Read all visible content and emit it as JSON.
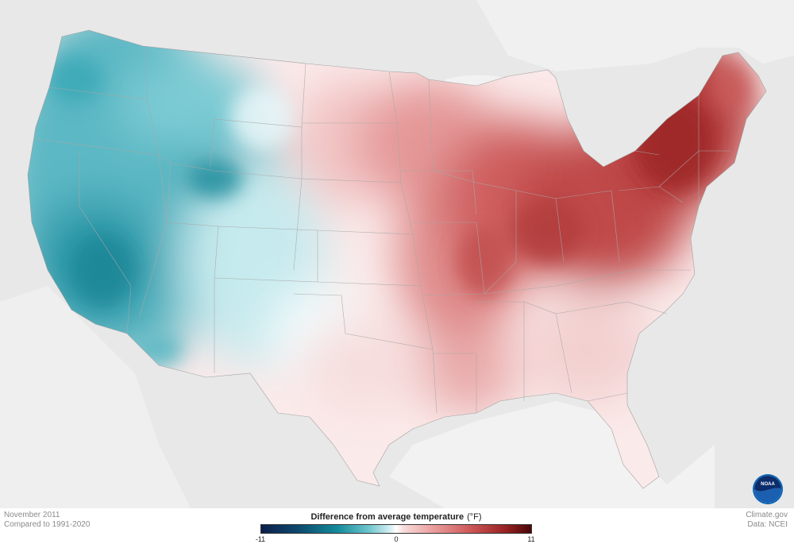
{
  "map": {
    "period": "November 2011",
    "baseline": "Compared to 1991-2020",
    "legend": {
      "title": "Difference from average temperature",
      "unit": "(°F)",
      "ticks": [
        "-11",
        "0",
        "11"
      ],
      "range": [
        -11,
        11
      ]
    },
    "credit": {
      "site": "Climate.gov",
      "data_source": "Data: NCEI"
    },
    "logo_text": "NOAA",
    "colors": {
      "cold_extreme": "#0b1f4a",
      "cold": "#128a99",
      "neutral": "#ffffff",
      "warm": "#cc5555",
      "warm_extreme": "#4a0606",
      "background_land": "#e8e8e8",
      "water": "#f2f2f2"
    }
  }
}
